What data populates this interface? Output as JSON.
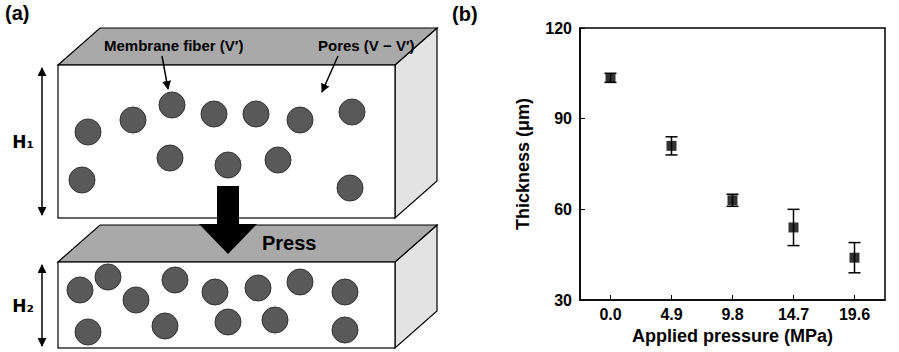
{
  "diagram": {
    "panel_label": "(a)",
    "fiber_label": "Membrane fiber (V′)",
    "pore_label": "Pores (V − V′)",
    "height_before": "H₁",
    "height_after": "H₂",
    "action": "Press"
  },
  "chart_data": {
    "type": "scatter",
    "panel_label": "(b)",
    "x_label": "Applied pressure (MPa)",
    "y_label": "Thickness (μm)",
    "categories": [
      "0.0",
      "4.9",
      "9.8",
      "14.7",
      "19.6"
    ],
    "values": [
      103.5,
      81,
      63,
      54,
      44
    ],
    "errors": [
      1.5,
      3,
      2,
      6,
      5
    ],
    "ylim": [
      30,
      120
    ],
    "yticks": [
      30,
      60,
      90,
      120
    ],
    "grid": false,
    "color": "#000000",
    "marker": "square"
  }
}
